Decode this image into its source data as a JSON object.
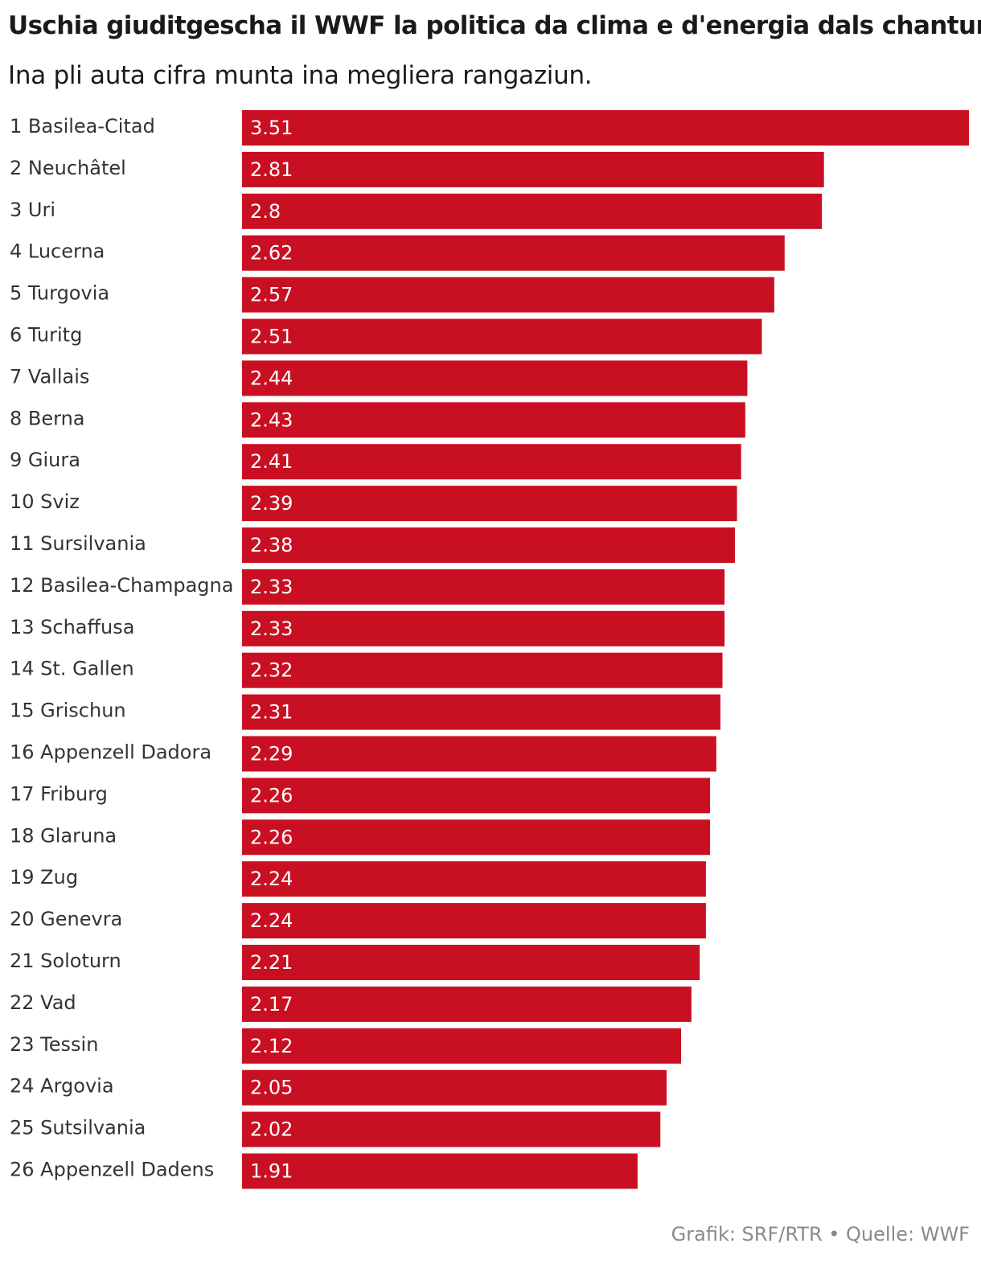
{
  "header": {
    "title": "Uschia giuditgescha il WWF la politica da clima e d'energia dals chantuns",
    "subtitle": "Ina pli auta cifra munta ina megliera rangaziun."
  },
  "footer": {
    "source": "Grafik: SRF/RTR • Quelle: WWF"
  },
  "colors": {
    "bar": "#c91023",
    "value_text": "#ffffff",
    "label_text": "#333333",
    "source_text": "#8a8a8a"
  },
  "chart_data": {
    "type": "bar",
    "orientation": "horizontal",
    "title": "Uschia giuditgescha il WWF la politica da clima e d'energia dals chantuns",
    "subtitle": "Ina pli auta cifra munta ina megliera rangaziun.",
    "xlabel": "",
    "ylabel": "",
    "xlim": [
      0,
      3.51
    ],
    "grid": false,
    "legend": "none",
    "categories": [
      "1 Basilea-Citad",
      "2 Neuchâtel",
      "3 Uri",
      "4 Lucerna",
      "5 Turgovia",
      "6 Turitg",
      "7 Vallais",
      "8 Berna",
      "9 Giura",
      "10 Sviz",
      "11 Sursilvania",
      "12 Basilea-Champagna",
      "13 Schaffusa",
      "14 St. Gallen",
      "15 Grischun",
      "16 Appenzell Dadora",
      "17 Friburg",
      "18 Glaruna",
      "19 Zug",
      "20 Genevra",
      "21 Soloturn",
      "22 Vad",
      "23 Tessin",
      "24 Argovia",
      "25 Sutsilvania",
      "26 Appenzell Dadens"
    ],
    "values": [
      3.51,
      2.81,
      2.8,
      2.62,
      2.57,
      2.51,
      2.44,
      2.43,
      2.41,
      2.39,
      2.38,
      2.33,
      2.33,
      2.32,
      2.31,
      2.29,
      2.26,
      2.26,
      2.24,
      2.24,
      2.21,
      2.17,
      2.12,
      2.05,
      2.02,
      1.91
    ],
    "value_labels": [
      "3.51",
      "2.81",
      "2.8",
      "2.62",
      "2.57",
      "2.51",
      "2.44",
      "2.43",
      "2.41",
      "2.39",
      "2.38",
      "2.33",
      "2.33",
      "2.32",
      "2.31",
      "2.29",
      "2.26",
      "2.26",
      "2.24",
      "2.24",
      "2.21",
      "2.17",
      "2.12",
      "2.05",
      "2.02",
      "1.91"
    ]
  }
}
